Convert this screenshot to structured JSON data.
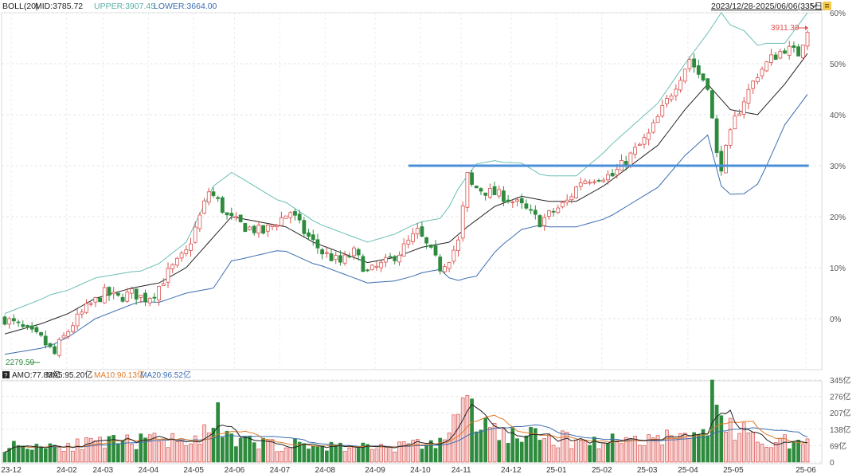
{
  "header": {
    "indicator": "BOLL(20)",
    "mid": "MID:3785.72",
    "upper": "UPPER:3907.45",
    "lower": "LOWER:3664.00",
    "range_label": "2023/12/28-2025/06/06(335日)"
  },
  "volume_header": {
    "help": "?",
    "amo": "AMO:77.83亿",
    "ma5": "MA5:95.20亿",
    "ma10": "MA10:90.13亿",
    "ma20": "MA20:96.52亿"
  },
  "colors": {
    "up": "#d9534f",
    "down": "#2e8b3e",
    "mid": "#222222",
    "upper": "#6bbfb5",
    "lower": "#3b6db0",
    "support_line": "#4a90d9",
    "ma5": "#222222",
    "ma10": "#e07a28",
    "ma20": "#3b6db0"
  },
  "icons": {
    "dropdown": "chevron-down-icon",
    "settings": "settings-icon"
  },
  "chart_data": [
    {
      "type": "candlestick",
      "title": "BOLL(20)",
      "y_axis": {
        "unit": "% change",
        "ticks": [
          "60%",
          "50%",
          "40%",
          "30%",
          "20%",
          "10%",
          "0%"
        ],
        "ylim": [
          -10,
          60
        ]
      },
      "x_axis": {
        "ticks": [
          "23-12",
          "24-02",
          "24-03",
          "24-04",
          "24-05",
          "24-06",
          "24-07",
          "24-08",
          "24-09",
          "24-10",
          "24-11",
          "24-12",
          "25-01",
          "25-02",
          "25-03",
          "25-04",
          "25-05",
          "25-06"
        ]
      },
      "annotations": {
        "high": "3911.30",
        "low": "2279.59"
      },
      "support_level_pct": 30,
      "grid": true,
      "price_path_pct": [
        [
          0,
          0
        ],
        [
          4,
          -2
        ],
        [
          8,
          -4
        ],
        [
          11,
          -7
        ],
        [
          12,
          -5
        ],
        [
          15,
          -1
        ],
        [
          18,
          2
        ],
        [
          22,
          5
        ],
        [
          25,
          4
        ],
        [
          28,
          5
        ],
        [
          31,
          4
        ],
        [
          33,
          5
        ],
        [
          36,
          9
        ],
        [
          40,
          13
        ],
        [
          43,
          20
        ],
        [
          45,
          25
        ],
        [
          47,
          23
        ],
        [
          49,
          20
        ],
        [
          53,
          18
        ],
        [
          57,
          17
        ],
        [
          60,
          19
        ],
        [
          63,
          21
        ],
        [
          66,
          17
        ],
        [
          70,
          13
        ],
        [
          74,
          11
        ],
        [
          77,
          13
        ],
        [
          80,
          9
        ],
        [
          84,
          11
        ],
        [
          87,
          13
        ],
        [
          91,
          17
        ],
        [
          94,
          13
        ],
        [
          96,
          10
        ],
        [
          98,
          12
        ],
        [
          100,
          15
        ],
        [
          102,
          28
        ],
        [
          103,
          26
        ],
        [
          106,
          25
        ],
        [
          110,
          24
        ],
        [
          114,
          22
        ],
        [
          118,
          19
        ],
        [
          121,
          21
        ],
        [
          124,
          23
        ],
        [
          127,
          27
        ],
        [
          131,
          28
        ],
        [
          134,
          28
        ],
        [
          138,
          32
        ],
        [
          142,
          36
        ],
        [
          145,
          41
        ],
        [
          148,
          46
        ],
        [
          151,
          51
        ],
        [
          153,
          48
        ],
        [
          155,
          46
        ],
        [
          157,
          32
        ],
        [
          158,
          30
        ],
        [
          161,
          39
        ],
        [
          163,
          43
        ],
        [
          166,
          48
        ],
        [
          169,
          51
        ],
        [
          172,
          53
        ],
        [
          175,
          52
        ],
        [
          177,
          57
        ]
      ],
      "mid_path_pct": [
        [
          0,
          -3
        ],
        [
          8,
          -1
        ],
        [
          14,
          1
        ],
        [
          20,
          4
        ],
        [
          28,
          6
        ],
        [
          34,
          7
        ],
        [
          40,
          10
        ],
        [
          46,
          16
        ],
        [
          50,
          20
        ],
        [
          56,
          19
        ],
        [
          62,
          18
        ],
        [
          68,
          15
        ],
        [
          74,
          13
        ],
        [
          80,
          11
        ],
        [
          86,
          12
        ],
        [
          92,
          14
        ],
        [
          98,
          15
        ],
        [
          102,
          18
        ],
        [
          108,
          22
        ],
        [
          114,
          24
        ],
        [
          120,
          23
        ],
        [
          126,
          23
        ],
        [
          132,
          26
        ],
        [
          138,
          30
        ],
        [
          144,
          34
        ],
        [
          150,
          41
        ],
        [
          155,
          46
        ],
        [
          160,
          41
        ],
        [
          166,
          40
        ],
        [
          172,
          46
        ],
        [
          177,
          52
        ]
      ],
      "band_width_pct": [
        [
          0,
          4
        ],
        [
          10,
          5
        ],
        [
          20,
          4
        ],
        [
          30,
          3
        ],
        [
          40,
          5
        ],
        [
          46,
          10
        ],
        [
          52,
          8
        ],
        [
          60,
          5
        ],
        [
          70,
          4
        ],
        [
          80,
          4
        ],
        [
          90,
          5
        ],
        [
          96,
          5
        ],
        [
          100,
          9
        ],
        [
          104,
          11
        ],
        [
          110,
          8
        ],
        [
          118,
          5
        ],
        [
          126,
          5
        ],
        [
          134,
          7
        ],
        [
          142,
          8
        ],
        [
          150,
          9
        ],
        [
          155,
          10
        ],
        [
          158,
          17
        ],
        [
          163,
          16
        ],
        [
          168,
          12
        ],
        [
          172,
          8
        ],
        [
          177,
          8
        ]
      ]
    },
    {
      "type": "bar",
      "title": "AMO",
      "y_axis": {
        "unit": "亿",
        "ticks": [
          "345亿",
          "276亿",
          "207亿",
          "138亿",
          "69亿",
          "0"
        ],
        "ylim": [
          0,
          345
        ]
      },
      "volume_path": [
        [
          0,
          75
        ],
        [
          20,
          85
        ],
        [
          40,
          110
        ],
        [
          45,
          130
        ],
        [
          50,
          100
        ],
        [
          60,
          80
        ],
        [
          70,
          75
        ],
        [
          80,
          70
        ],
        [
          90,
          80
        ],
        [
          95,
          85
        ],
        [
          98,
          140
        ],
        [
          100,
          210
        ],
        [
          102,
          250
        ],
        [
          105,
          170
        ],
        [
          110,
          130
        ],
        [
          120,
          110
        ],
        [
          130,
          95
        ],
        [
          140,
          110
        ],
        [
          150,
          120
        ],
        [
          155,
          135
        ],
        [
          157,
          250
        ],
        [
          159,
          160
        ],
        [
          165,
          110
        ],
        [
          170,
          100
        ],
        [
          177,
          85
        ]
      ],
      "spikes": [
        [
          47,
          250
        ],
        [
          101,
          270
        ],
        [
          102,
          280
        ],
        [
          156,
          345
        ],
        [
          157,
          240
        ],
        [
          163,
          165
        ]
      ],
      "series": [
        {
          "name": "MA5",
          "values_label": "95.20亿"
        },
        {
          "name": "MA10",
          "values_label": "90.13亿"
        },
        {
          "name": "MA20",
          "values_label": "96.52亿"
        }
      ]
    }
  ]
}
